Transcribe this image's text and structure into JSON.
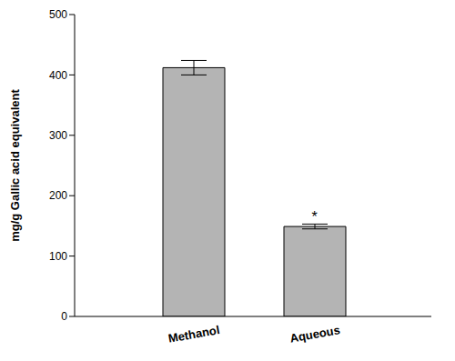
{
  "chart_data": {
    "type": "bar",
    "categories": [
      "Methanol",
      "Aqueous"
    ],
    "values": [
      412,
      149
    ],
    "errors": [
      12,
      4
    ],
    "color": "#b4b4b4",
    "y_label": "mg/g Gallic acid equivalent",
    "ylim": [
      0,
      500
    ],
    "yticks": [
      0,
      100,
      200,
      300,
      400,
      500
    ],
    "grid": false,
    "annotations": [
      {
        "category": "Aqueous",
        "text": "*"
      }
    ]
  }
}
